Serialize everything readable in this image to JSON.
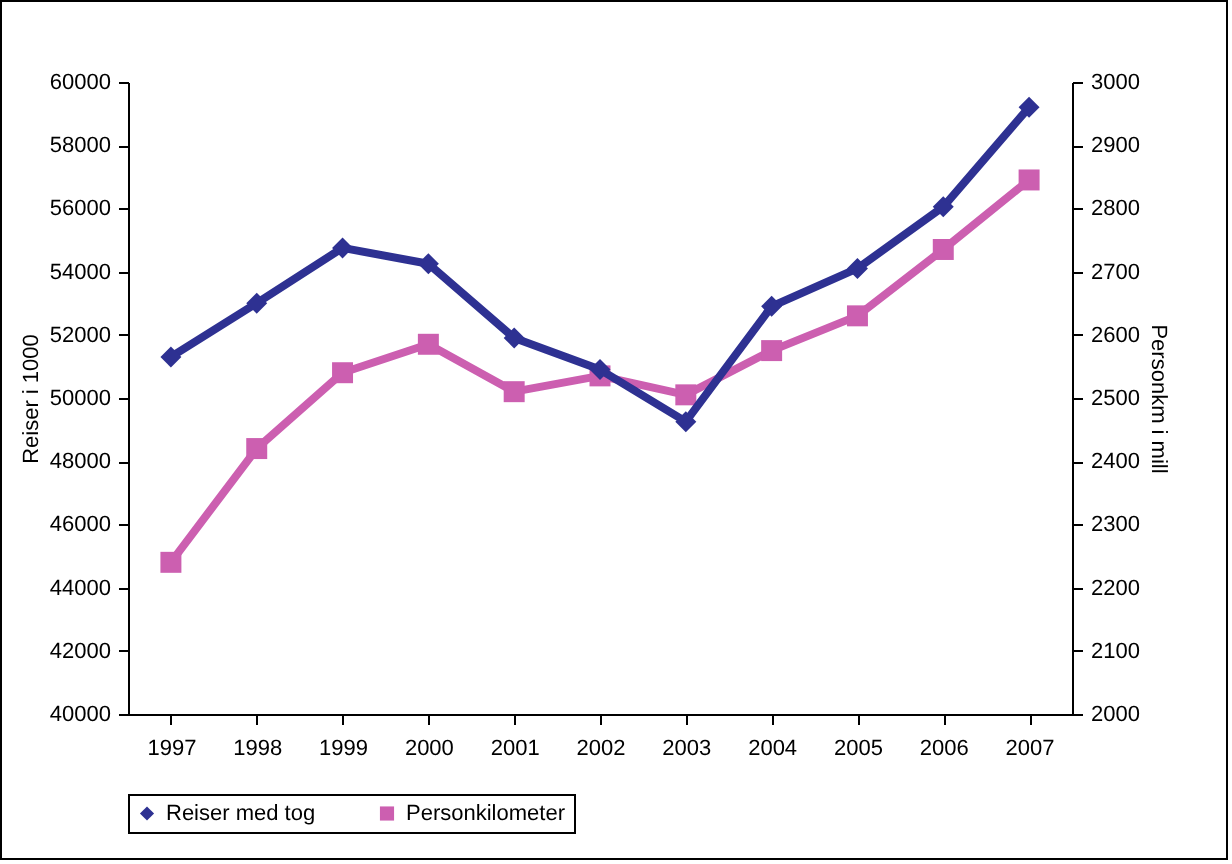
{
  "chart_data": {
    "type": "line",
    "categories": [
      "1997",
      "1998",
      "1999",
      "2000",
      "2001",
      "2002",
      "2003",
      "2004",
      "2005",
      "2006",
      "2007"
    ],
    "ylabel": "Reiser i 1000",
    "y2label": "Personkm i mill",
    "ylim": [
      40000,
      60000
    ],
    "yticks": [
      40000,
      42000,
      44000,
      46000,
      48000,
      50000,
      52000,
      54000,
      56000,
      58000,
      60000
    ],
    "y2lim": [
      2000,
      3000
    ],
    "y2ticks": [
      2000,
      2100,
      2200,
      2300,
      2400,
      2500,
      2600,
      2700,
      2800,
      2900,
      3000
    ],
    "grid": false,
    "legend": "bottom",
    "marker": "diamond",
    "series": [
      {
        "name": "Reiser med tog",
        "color": "#2e3192",
        "values": [
          51300,
          53000,
          54750,
          54250,
          51900,
          50900,
          49250,
          52900,
          54100,
          56050,
          59200
        ]
      },
      {
        "name": "Personkilometer",
        "color": "#cc5fb0",
        "axis": "y2",
        "marker": "square",
        "values": [
          2240,
          2420,
          2540,
          2585,
          2510,
          2535,
          2505,
          2575,
          2630,
          2735,
          2845
        ]
      }
    ]
  }
}
